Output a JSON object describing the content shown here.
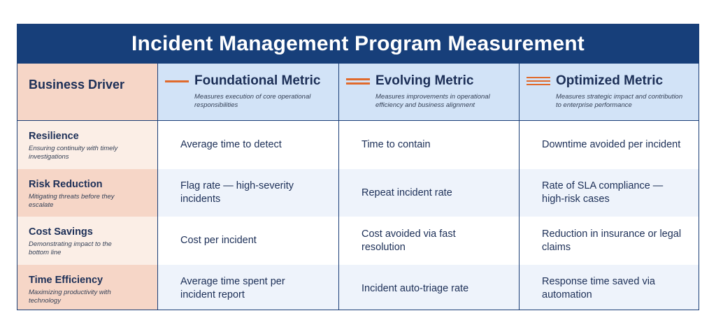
{
  "title": "Incident Management Program Measurement",
  "header": {
    "driver_label": "Business Driver",
    "metrics": [
      {
        "name": "Foundational Metric",
        "desc": "Measures execution of core operational responsibilities",
        "bars": 1
      },
      {
        "name": "Evolving Metric",
        "desc": "Measures improvements in operational efficiency and business alignment",
        "bars": 2
      },
      {
        "name": "Optimized Metric",
        "desc": "Measures strategic impact and contribution to enterprise performance",
        "bars": 3
      }
    ]
  },
  "rows": [
    {
      "driver": "Resilience",
      "desc": "Ensuring continuity with timely investigations",
      "foundational": "Average time to detect",
      "evolving": "Time to contain",
      "optimized": "Downtime avoided per incident"
    },
    {
      "driver": "Risk Reduction",
      "desc": "Mitigating threats before they escalate",
      "foundational": "Flag rate — high-severity incidents",
      "evolving": "Repeat incident rate",
      "optimized": "Rate of SLA compliance — high-risk cases"
    },
    {
      "driver": "Cost Savings",
      "desc": "Demonstrating impact to the bottom line",
      "foundational": "Cost per incident",
      "evolving": "Cost avoided via fast resolution",
      "optimized": "Reduction in insurance or legal claims"
    },
    {
      "driver": "Time Efficiency",
      "desc": "Maximizing productivity with technology",
      "foundational": "Average time spent per incident report",
      "evolving": "Incident auto-triage rate",
      "optimized": "Response time saved via automation"
    }
  ],
  "colors": {
    "navy": "#173f7a",
    "accent": "#e06a2c",
    "peach": "#f6d6c7",
    "light_blue": "#d2e3f7"
  }
}
